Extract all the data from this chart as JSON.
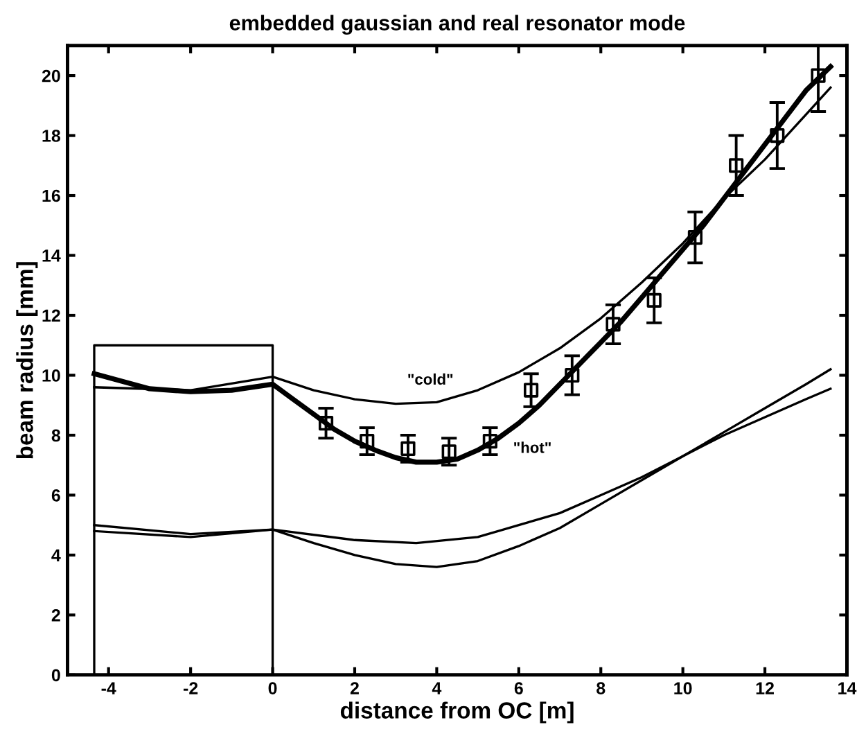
{
  "chart_data": {
    "type": "line",
    "title": "embedded gaussian and real resonator mode",
    "xlabel": "distance from OC [m]",
    "ylabel": "beam radius [mm]",
    "xlim": [
      -5,
      14
    ],
    "ylim": [
      0,
      21
    ],
    "xticks": [
      -4,
      -2,
      0,
      2,
      4,
      6,
      8,
      10,
      12,
      14
    ],
    "yticks": [
      0,
      2,
      4,
      6,
      8,
      10,
      12,
      14,
      16,
      18,
      20
    ],
    "grid": false,
    "legend": false,
    "marker": "none",
    "line_style": "solid",
    "series": [
      {
        "color": "#000000",
        "x": [
          -4.35,
          -3,
          -2,
          -1,
          0,
          0.5,
          1,
          1.5,
          2,
          2.5,
          3,
          3.5,
          4,
          4.5,
          5,
          5.5,
          6,
          6.5,
          7,
          7.5,
          8,
          8.5,
          9,
          9.5,
          10,
          10.5,
          11,
          11.5,
          12,
          12.5,
          13,
          13.6
        ],
        "values": [
          10.05,
          9.55,
          9.45,
          9.5,
          9.7,
          9.2,
          8.7,
          8.2,
          7.8,
          7.5,
          7.25,
          7.1,
          7.1,
          7.2,
          7.5,
          7.9,
          8.4,
          9.0,
          9.7,
          10.4,
          11.1,
          11.8,
          12.6,
          13.4,
          14.2,
          15.0,
          15.9,
          16.8,
          17.7,
          18.6,
          19.5,
          20.3
        ]
      },
      {
        "color": "#000000",
        "x": [
          -4.35,
          -2,
          0,
          1,
          2,
          3,
          4,
          5,
          6,
          7,
          8,
          9,
          10,
          11,
          12,
          13,
          13.6
        ],
        "values": [
          9.6,
          9.5,
          9.95,
          9.5,
          9.2,
          9.05,
          9.1,
          9.5,
          10.1,
          10.9,
          11.9,
          13.1,
          14.4,
          15.9,
          17.2,
          18.7,
          19.6
        ]
      },
      {
        "color": "#000000",
        "x": [
          -4.35,
          -2,
          0,
          2,
          3.5,
          5,
          6,
          7,
          8,
          9,
          10,
          11,
          12,
          13,
          13.6
        ],
        "values": [
          5.0,
          4.7,
          4.85,
          4.5,
          4.4,
          4.6,
          5.0,
          5.4,
          6.0,
          6.6,
          7.3,
          8.0,
          8.6,
          9.2,
          9.55
        ]
      },
      {
        "color": "#000000",
        "x": [
          -4.35,
          -2,
          0,
          1,
          2,
          3,
          4,
          5,
          6,
          7,
          8,
          9,
          10,
          11,
          12,
          13,
          13.6
        ],
        "values": [
          4.8,
          4.6,
          4.85,
          4.4,
          4.0,
          3.7,
          3.6,
          3.8,
          4.3,
          4.9,
          5.7,
          6.5,
          7.3,
          8.1,
          8.9,
          9.7,
          10.2
        ]
      },
      {
        "color": "#000000",
        "x": [
          -4.35,
          -4.35,
          0,
          0
        ],
        "values": [
          0,
          11,
          11,
          0
        ]
      },
      {
        "type": "scatter",
        "marker": "square",
        "color": "#000000",
        "x": [
          1.3,
          2.3,
          3.3,
          4.3,
          5.3,
          6.3,
          7.3,
          8.3,
          9.3,
          10.3,
          11.3,
          12.3,
          13.3
        ],
        "values": [
          8.4,
          7.8,
          7.55,
          7.45,
          7.8,
          9.5,
          10.0,
          11.7,
          12.5,
          14.6,
          17.0,
          18.0,
          20.0
        ],
        "errors": [
          0.5,
          0.45,
          0.45,
          0.45,
          0.45,
          0.55,
          0.65,
          0.65,
          0.75,
          0.85,
          1.0,
          1.1,
          1.2
        ]
      }
    ],
    "annotations": [
      {
        "text": "\"cold\"",
        "x": 3,
        "y": 9.05
      },
      {
        "text": "\"hot\"",
        "x": 5.3,
        "y": 7.8
      }
    ]
  }
}
